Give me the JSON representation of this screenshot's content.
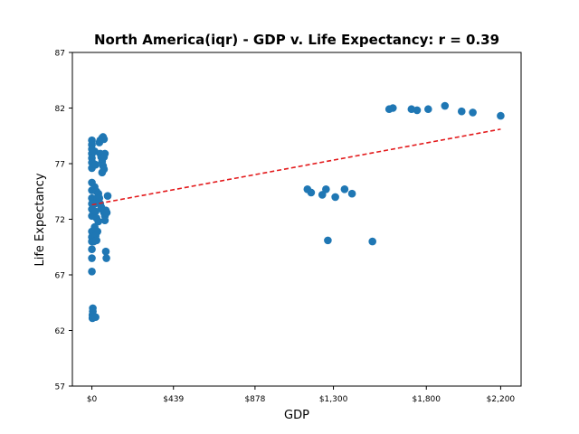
{
  "chart_data": {
    "type": "scatter",
    "title": "North America(iqr) - GDP v. Life Expectancy: r = 0.39",
    "xlabel": "GDP",
    "ylabel": "Life Expectancy",
    "xlim": [
      -105,
      2310
    ],
    "ylim": [
      57,
      87
    ],
    "x_ticks": [
      0,
      439,
      878,
      1300,
      1800,
      2200
    ],
    "x_tick_labels": [
      "$0",
      "$439",
      "$878",
      "$1,300",
      "$1,800",
      "$2,200"
    ],
    "y_ticks": [
      57,
      62,
      67,
      72,
      77,
      82,
      87
    ],
    "y_tick_labels": [
      "57",
      "62",
      "67",
      "72",
      "77",
      "82",
      "87"
    ],
    "grid": false,
    "colors": {
      "points": "#1f77b4",
      "trendline": "#e31a1c"
    },
    "trendline": {
      "x": [
        0,
        2200
      ],
      "y": [
        73.3,
        80.1
      ],
      "style": "dashed"
    },
    "points": [
      [
        0,
        79.1
      ],
      [
        0,
        78.7
      ],
      [
        0,
        78.3
      ],
      [
        0,
        77.9
      ],
      [
        0,
        77.5
      ],
      [
        0,
        77.1
      ],
      [
        0,
        76.6
      ],
      [
        0,
        75.3
      ],
      [
        0,
        74.6
      ],
      [
        0,
        73.9
      ],
      [
        0,
        73.4
      ],
      [
        0,
        72.9
      ],
      [
        0,
        72.3
      ],
      [
        0,
        70.9
      ],
      [
        0,
        70.4
      ],
      [
        0,
        70.0
      ],
      [
        0,
        69.3
      ],
      [
        0,
        68.5
      ],
      [
        0,
        67.3
      ],
      [
        5,
        64.0
      ],
      [
        5,
        63.7
      ],
      [
        3,
        63.4
      ],
      [
        3,
        63.1
      ],
      [
        10,
        63.2
      ],
      [
        20,
        63.2
      ],
      [
        10,
        77.0
      ],
      [
        15,
        78.1
      ],
      [
        20,
        76.9
      ],
      [
        15,
        74.9
      ],
      [
        25,
        74.5
      ],
      [
        35,
        74.3
      ],
      [
        30,
        73.9
      ],
      [
        15,
        73.4
      ],
      [
        20,
        72.7
      ],
      [
        25,
        72.1
      ],
      [
        35,
        71.8
      ],
      [
        15,
        71.3
      ],
      [
        30,
        70.9
      ],
      [
        20,
        70.5
      ],
      [
        10,
        70.0
      ],
      [
        25,
        70.1
      ],
      [
        40,
        78.9
      ],
      [
        45,
        79.1
      ],
      [
        55,
        79.3
      ],
      [
        60,
        79.4
      ],
      [
        65,
        79.2
      ],
      [
        45,
        77.9
      ],
      [
        50,
        77.6
      ],
      [
        55,
        77.2
      ],
      [
        60,
        76.8
      ],
      [
        65,
        76.5
      ],
      [
        55,
        76.2
      ],
      [
        70,
        77.9
      ],
      [
        65,
        77.6
      ],
      [
        40,
        73.9
      ],
      [
        45,
        73.4
      ],
      [
        50,
        73.1
      ],
      [
        55,
        72.9
      ],
      [
        65,
        72.6
      ],
      [
        70,
        72.3
      ],
      [
        75,
        72.8
      ],
      [
        80,
        72.6
      ],
      [
        70,
        71.9
      ],
      [
        85,
        74.1
      ],
      [
        75,
        69.1
      ],
      [
        78,
        68.5
      ],
      [
        1160,
        74.7
      ],
      [
        1180,
        74.4
      ],
      [
        1240,
        74.2
      ],
      [
        1260,
        74.7
      ],
      [
        1310,
        74.0
      ],
      [
        1360,
        74.7
      ],
      [
        1400,
        74.3
      ],
      [
        1270,
        70.1
      ],
      [
        1510,
        70.0
      ],
      [
        1600,
        81.9
      ],
      [
        1620,
        82.0
      ],
      [
        1720,
        81.9
      ],
      [
        1750,
        81.8
      ],
      [
        1810,
        81.9
      ],
      [
        1900,
        82.2
      ],
      [
        1990,
        81.7
      ],
      [
        2050,
        81.6
      ],
      [
        2200,
        81.3
      ]
    ]
  }
}
